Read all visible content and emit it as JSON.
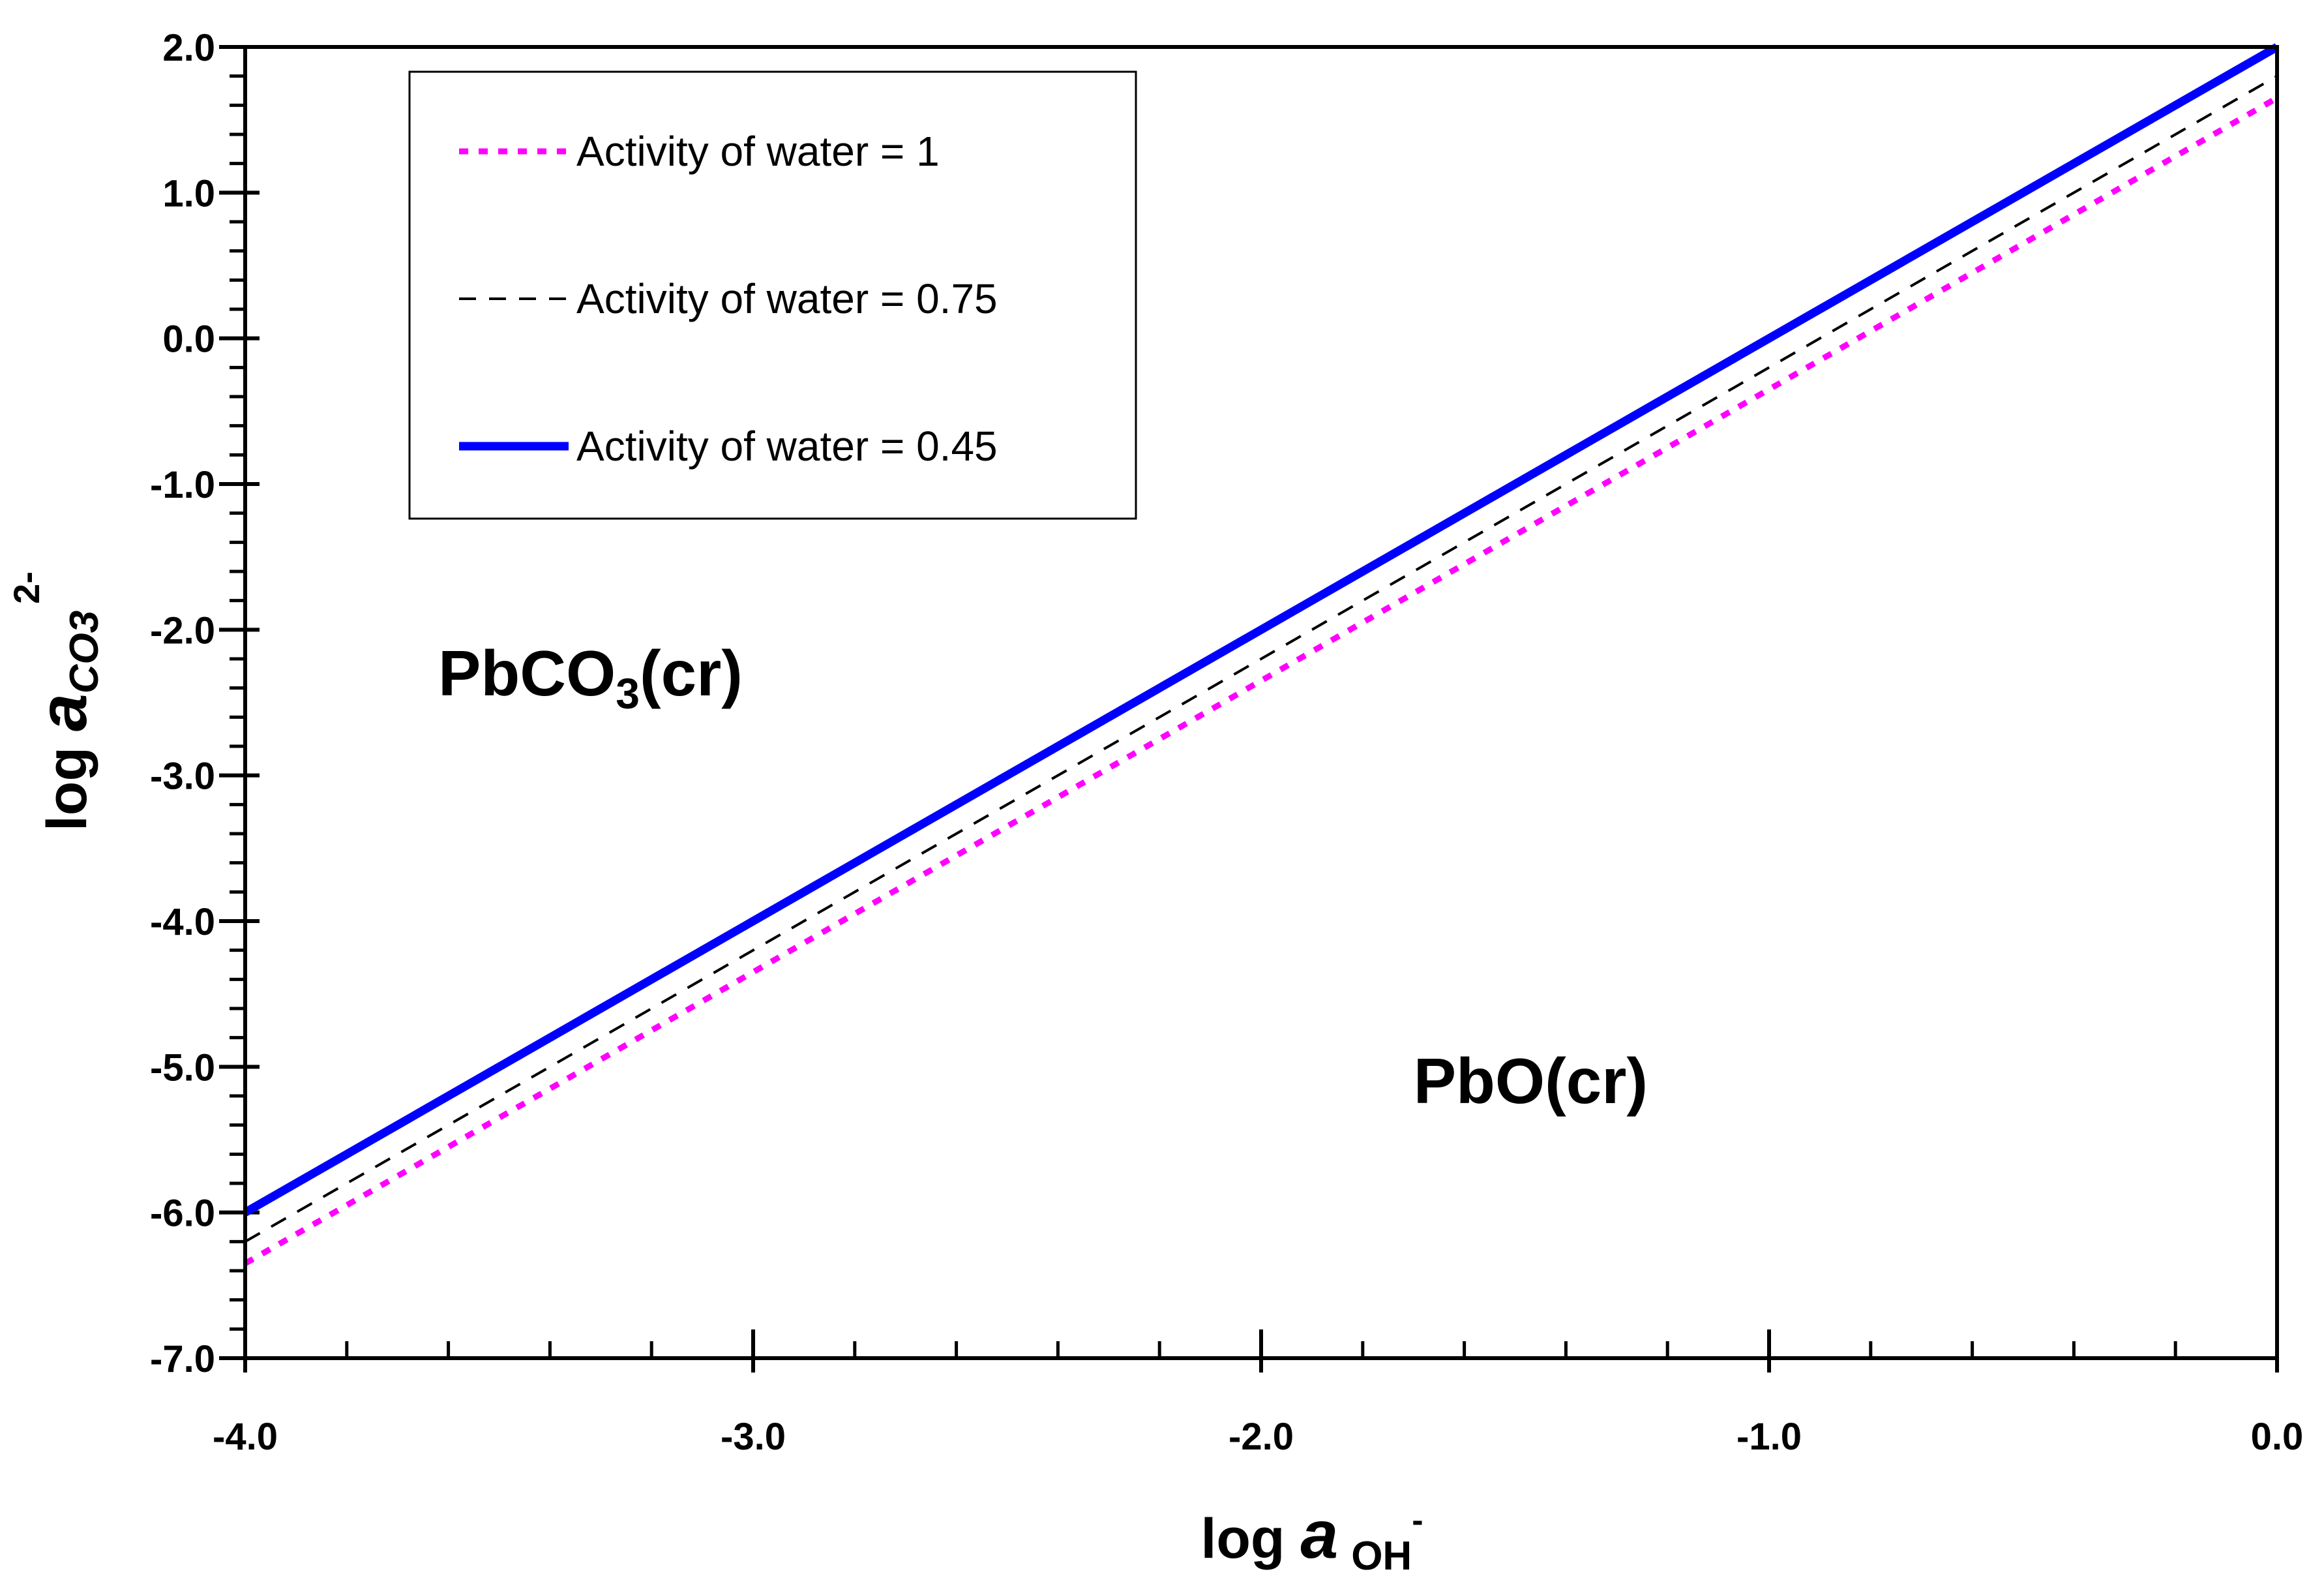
{
  "chart_data": {
    "type": "line",
    "title": "",
    "xlabel": {
      "prefix": "log ",
      "symbol": "a",
      "subscript": "OH",
      "superscript": "-"
    },
    "ylabel": {
      "prefix": "log ",
      "symbol": "a",
      "subscript": "CO3",
      "superscript": "2-"
    },
    "xlim": [
      -4.0,
      0.0
    ],
    "ylim": [
      -7.0,
      2.0
    ],
    "x_major_ticks": [
      -4.0,
      -3.0,
      -2.0,
      -1.0,
      0.0
    ],
    "x_tick_labels": [
      "-4.0",
      "-3.0",
      "-2.0",
      "-1.0",
      "0.0"
    ],
    "x_minor_step": 0.2,
    "y_major_ticks": [
      2.0,
      1.0,
      0.0,
      -1.0,
      -2.0,
      -3.0,
      -4.0,
      -5.0,
      -6.0,
      -7.0
    ],
    "y_tick_labels": [
      "2.0",
      "1.0",
      "0.0",
      "-1.0",
      "-2.0",
      "-3.0",
      "-4.0",
      "-5.0",
      "-6.0",
      "-7.0"
    ],
    "y_minor_step": 0.2,
    "grid": false,
    "legend_position": "top-left",
    "series": [
      {
        "name": "Activity of water = 1",
        "x": [
          -4.0,
          0.0
        ],
        "y": [
          -6.35,
          1.65
        ],
        "color": "#ff00ff",
        "style": "dotted"
      },
      {
        "name": "Activity of water = 0.75",
        "x": [
          -4.0,
          0.0
        ],
        "y": [
          -6.2,
          1.8
        ],
        "color": "#000000",
        "style": "dashed"
      },
      {
        "name": "Activity of water = 0.45",
        "x": [
          -4.0,
          0.0
        ],
        "y": [
          -6.0,
          2.0
        ],
        "color": "#0000ff",
        "style": "solid"
      }
    ],
    "annotations": [
      {
        "formula": "PbCO",
        "subscript": "3",
        "suffix": "(cr)",
        "x": -3.62,
        "y": -2.45
      },
      {
        "formula": "PbO(cr)",
        "subscript": "",
        "suffix": "",
        "x": -1.7,
        "y": -5.25
      }
    ]
  }
}
